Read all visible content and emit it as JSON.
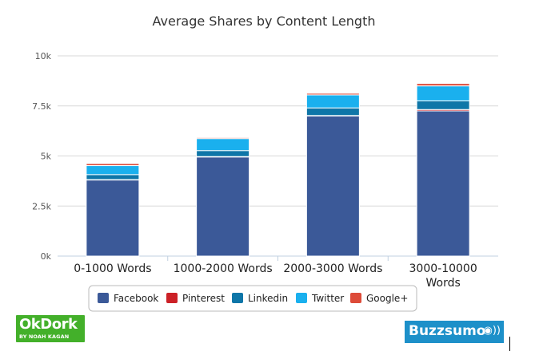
{
  "chart_data": {
    "type": "bar",
    "stacked": true,
    "title": "Average Shares by Content Length",
    "categories": [
      [
        "0-1000 Words"
      ],
      [
        "1000-2000 Words"
      ],
      [
        "2000-3000 Words"
      ],
      [
        "3000-10000",
        "Words"
      ]
    ],
    "series": [
      {
        "name": "Facebook",
        "color": "#3b5998",
        "values": [
          3800,
          4950,
          7000,
          7250
        ]
      },
      {
        "name": "Pinterest",
        "color": "#cc2127",
        "values": [
          20,
          20,
          20,
          70
        ]
      },
      {
        "name": "Linkedin",
        "color": "#0e76a8",
        "values": [
          250,
          300,
          380,
          430
        ]
      },
      {
        "name": "Twitter",
        "color": "#1ab0ee",
        "values": [
          450,
          600,
          650,
          750
        ]
      },
      {
        "name": "Google+",
        "color": "#dd4b39",
        "values": [
          100,
          50,
          80,
          120
        ]
      }
    ],
    "ylim": [
      0,
      10000
    ],
    "yticks": [
      0,
      2500,
      5000,
      7500,
      10000
    ],
    "ytick_labels": [
      "0k",
      "2.5k",
      "5k",
      "7.5k",
      "10k"
    ],
    "grid": true,
    "legend_position": "bottom"
  },
  "logos": {
    "okdork": {
      "main": "OkDork",
      "sub": "BY NOAH KAGAN"
    },
    "buzzsumo": {
      "main": "Buzzsumo",
      "symbol": "◉))"
    }
  }
}
